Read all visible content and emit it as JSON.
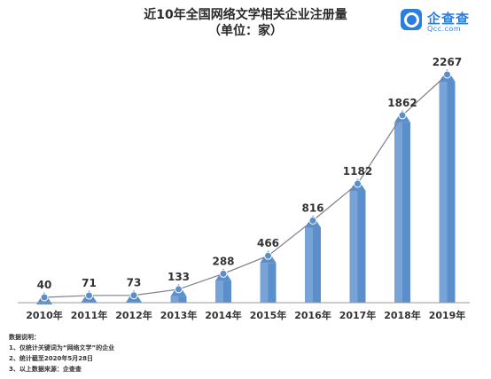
{
  "chart_data": {
    "type": "bar",
    "title": "近10年全国网络文学相关企业注册量",
    "subtitle": "（单位：家）",
    "categories": [
      "2010年",
      "2011年",
      "2012年",
      "2013年",
      "2014年",
      "2015年",
      "2016年",
      "2017年",
      "2018年",
      "2019年"
    ],
    "values": [
      40,
      71,
      73,
      133,
      288,
      466,
      816,
      1182,
      1862,
      2267
    ],
    "line_overlay": true,
    "grid": false,
    "colors": {
      "bar": "#5b8fcc",
      "bar_light": "#8fb4e0",
      "line": "#7a8090",
      "marker": "#5b8fcc"
    }
  },
  "logo": {
    "name": "企查查",
    "domain": "Qcc.com"
  },
  "notes": {
    "heading": "数据说明：",
    "items": [
      "1、仅统计关键词为“网络文学”的企业",
      "2、统计截至2020年5月28日",
      "3、以上数据来源：企查查"
    ]
  }
}
